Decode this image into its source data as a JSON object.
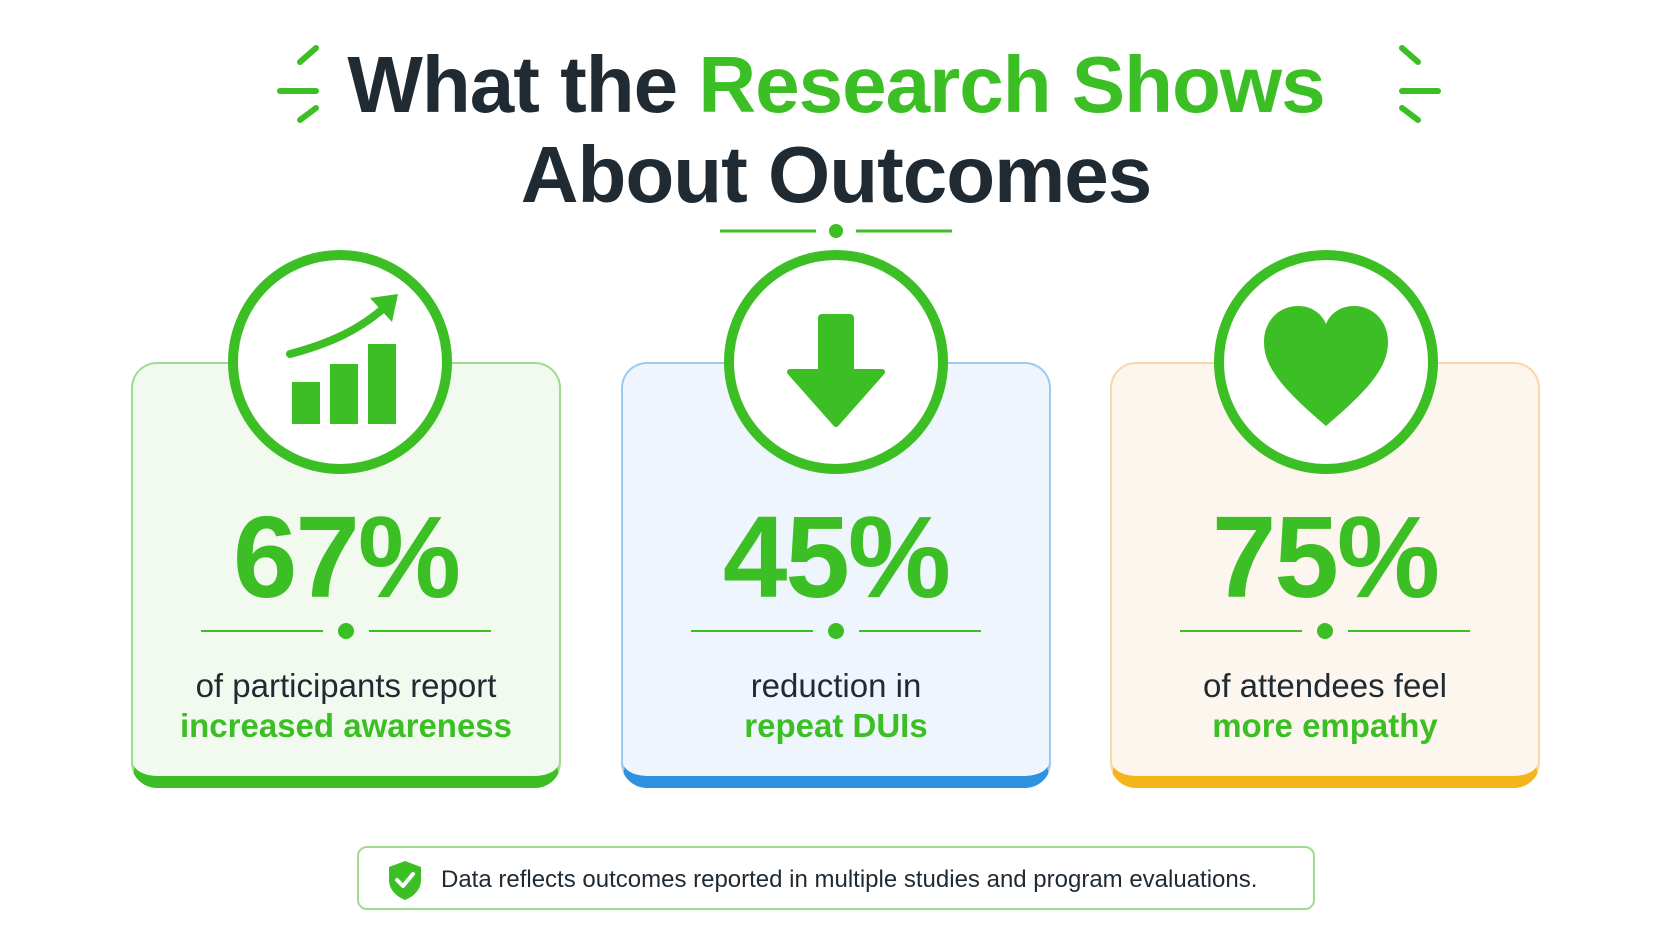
{
  "header": {
    "title_part1": "What the ",
    "title_accent": "Research Shows",
    "title_line2": "About Outcomes"
  },
  "colors": {
    "accent": "#3cbf24",
    "text": "#1f2a33",
    "card_green_bottom": "#3cbf24",
    "card_blue_bottom": "#2f92e0",
    "card_orange_bottom": "#f2b51a"
  },
  "stats": [
    {
      "icon": "bar-chart-growth-icon",
      "value": "67%",
      "line1": "of participants report",
      "line2": "increased awareness"
    },
    {
      "icon": "down-arrow-icon",
      "value": "45%",
      "line1": "reduction in",
      "line2": "repeat DUIs"
    },
    {
      "icon": "heart-icon",
      "value": "75%",
      "line1": "of attendees feel",
      "line2": "more empathy"
    }
  ],
  "footnote": {
    "icon": "shield-check-icon",
    "text": "Data reflects outcomes reported in multiple studies and program evaluations."
  }
}
